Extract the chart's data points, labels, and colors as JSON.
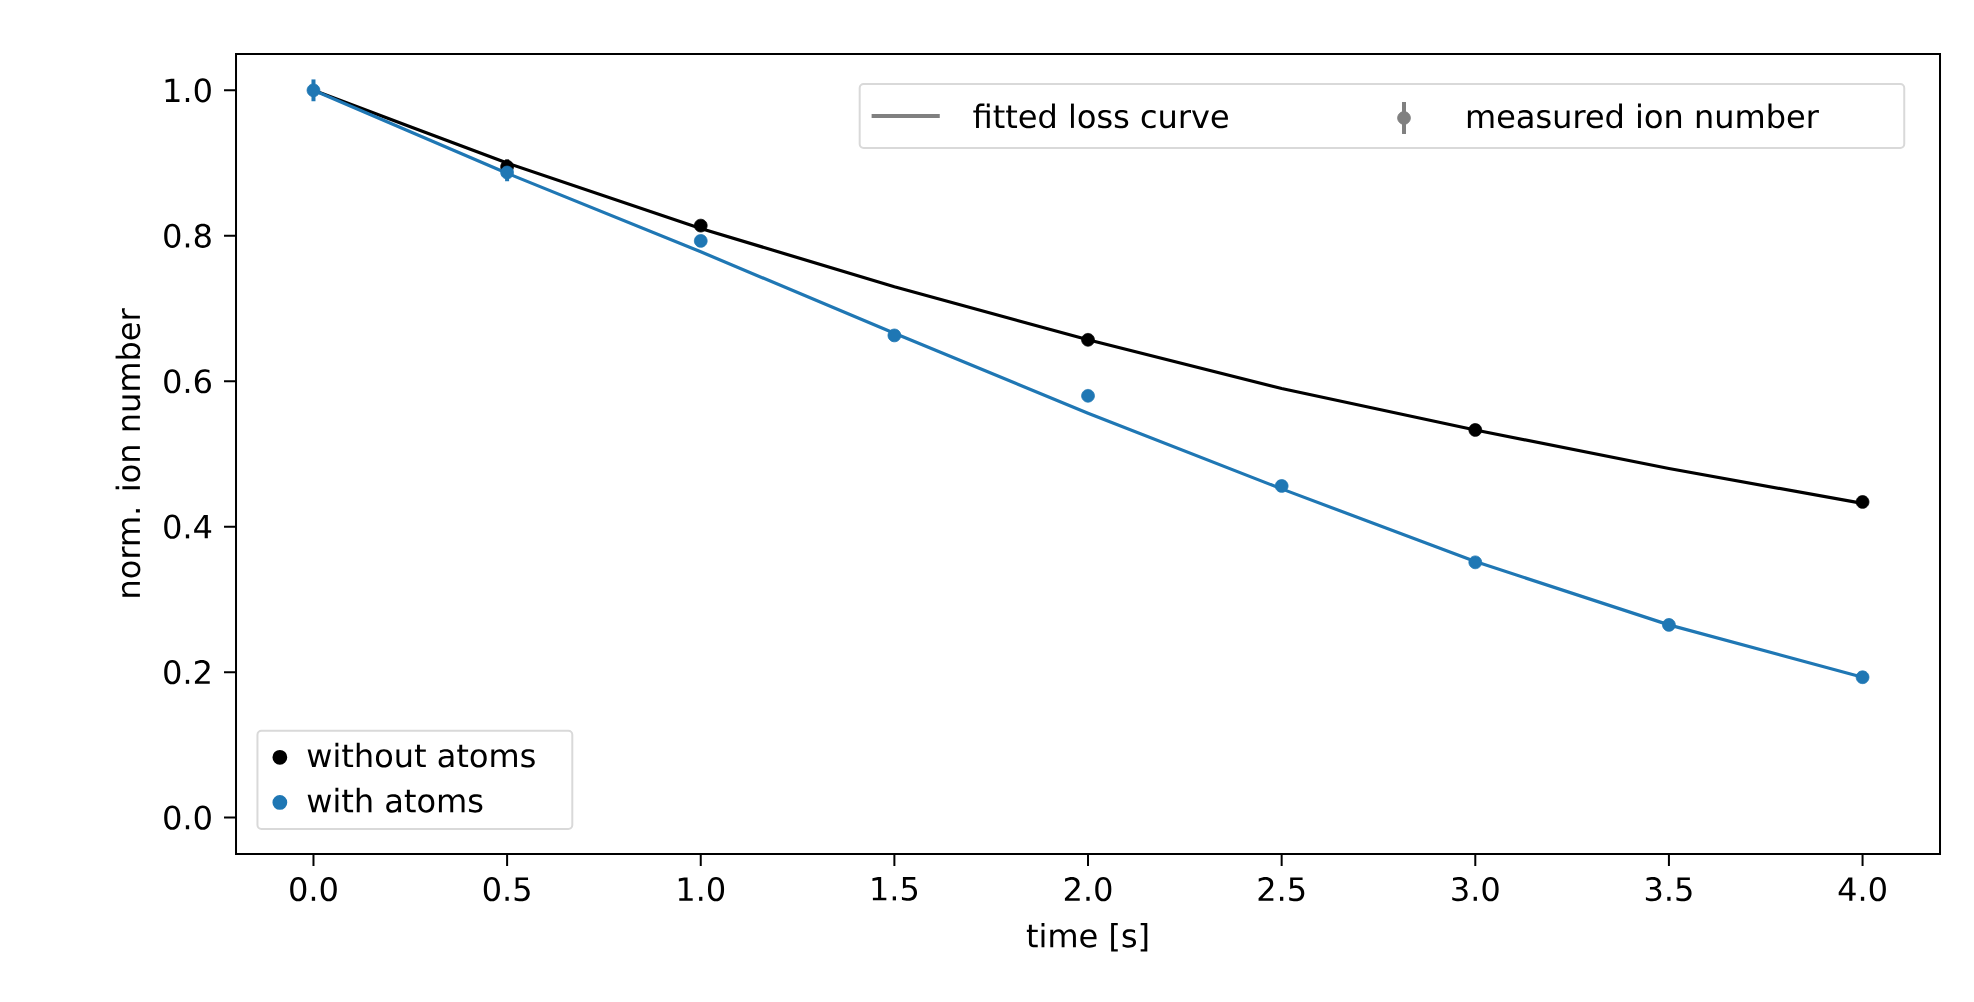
{
  "chart_data": {
    "type": "scatter",
    "xlabel": "time [s]",
    "ylabel": "norm. ion number",
    "xlim": [
      -0.2,
      4.2
    ],
    "ylim": [
      -0.05,
      1.05
    ],
    "xticks": [
      {
        "value": 0,
        "label": "0.0"
      },
      {
        "value": 0.5,
        "label": "0.5"
      },
      {
        "value": 1,
        "label": "1.0"
      },
      {
        "value": 1.5,
        "label": "1.5"
      },
      {
        "value": 2,
        "label": "2.0"
      },
      {
        "value": 2.5,
        "label": "2.5"
      },
      {
        "value": 3,
        "label": "3.0"
      },
      {
        "value": 3.5,
        "label": "3.5"
      },
      {
        "value": 4,
        "label": "4.0"
      }
    ],
    "yticks": [
      {
        "value": 0,
        "label": "0.0"
      },
      {
        "value": 0.2,
        "label": "0.2"
      },
      {
        "value": 0.4,
        "label": "0.4"
      },
      {
        "value": 0.6,
        "label": "0.6"
      },
      {
        "value": 0.8,
        "label": "0.8"
      },
      {
        "value": 1,
        "label": "1.0"
      }
    ],
    "x": [
      0,
      0.5,
      1,
      1.5,
      2,
      2.5,
      3,
      3.5,
      4
    ],
    "marker": "circle",
    "legend": "bottom left",
    "annotations": [
      "fitted loss curve",
      "measured ion number"
    ],
    "series": [
      {
        "type": "line",
        "marker": "none",
        "color": "#000000",
        "x": [
          0,
          0.25,
          0.5,
          0.75,
          1,
          1.5,
          2,
          2.5,
          3,
          3.5,
          4
        ],
        "values": [
          1.0,
          0.95,
          0.9,
          0.855,
          0.81,
          0.73,
          0.657,
          0.59,
          0.533,
          0.48,
          0.432
        ]
      },
      {
        "type": "line",
        "marker": "none",
        "color": "#1f77b4",
        "x": [
          0,
          0.25,
          0.5,
          0.75,
          1,
          1.5,
          2,
          2.5,
          3,
          3.5,
          4
        ],
        "values": [
          1.0,
          0.943,
          0.886,
          0.832,
          0.778,
          0.666,
          0.556,
          0.452,
          0.352,
          0.265,
          0.193
        ]
      },
      {
        "name": "without atoms",
        "color": "#000000",
        "x": [
          0.5,
          1,
          2,
          3,
          4
        ],
        "values": [
          0.895,
          0.814,
          0.657,
          0.533,
          0.434
        ],
        "errors": [
          0.01,
          null,
          null,
          null,
          null
        ]
      },
      {
        "name": "with atoms",
        "color": "#1f77b4",
        "values": [
          1.0,
          0.887,
          0.793,
          0.663,
          0.58,
          0.456,
          0.351,
          0.265,
          0.193
        ],
        "errors": [
          0.015,
          0.012,
          null,
          null,
          null,
          null,
          null,
          null,
          null
        ]
      }
    ]
  }
}
